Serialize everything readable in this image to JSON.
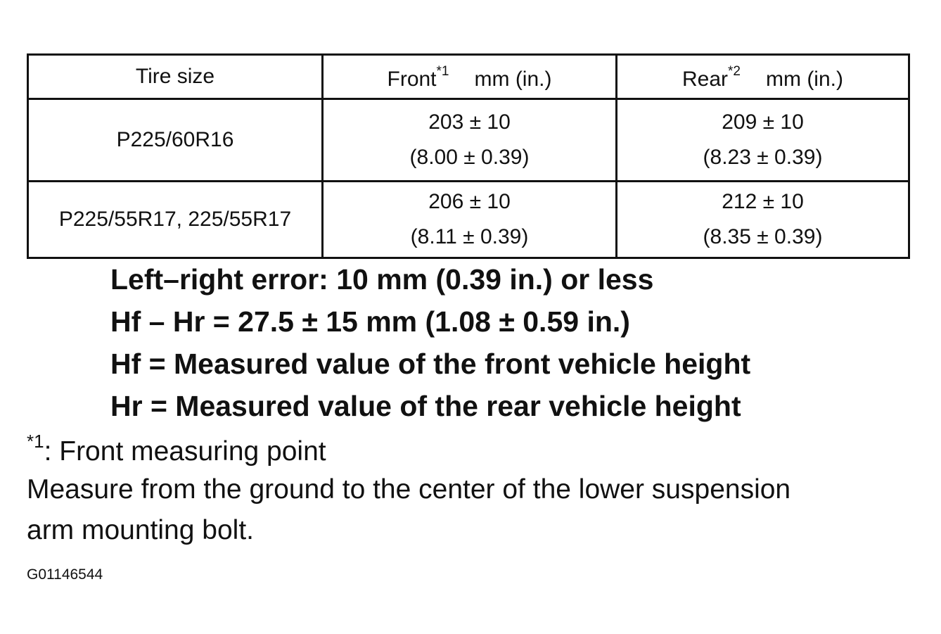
{
  "table": {
    "headers": {
      "tire_size": "Tire size",
      "front": "Front",
      "front_note": "*1",
      "front_unit": "mm (in.)",
      "rear": "Rear",
      "rear_note": "*2",
      "rear_unit": "mm (in.)"
    },
    "rows": [
      {
        "tire": "P225/60R16",
        "front_mm": "203 ± 10",
        "front_in": "(8.00 ± 0.39)",
        "rear_mm": "209 ± 10",
        "rear_in": "(8.23 ± 0.39)"
      },
      {
        "tire": "P225/55R17, 225/55R17",
        "front_mm": "206 ± 10",
        "front_in": "(8.11 ± 0.39)",
        "rear_mm": "212 ± 10",
        "rear_in": "(8.35 ± 0.39)"
      }
    ]
  },
  "specs": [
    "Left–right error: 10 mm (0.39 in.) or less",
    "Hf – Hr = 27.5 ± 15 mm (1.08 ± 0.59 in.)",
    "Hf = Measured value of the front vehicle height",
    "Hr = Measured value of the rear vehicle height"
  ],
  "note": {
    "marker": "*1",
    "title": ": Front measuring point",
    "line1": "Measure from the ground to the center of the lower suspension",
    "line2": "arm mounting bolt."
  },
  "figure_code": "G01146544"
}
